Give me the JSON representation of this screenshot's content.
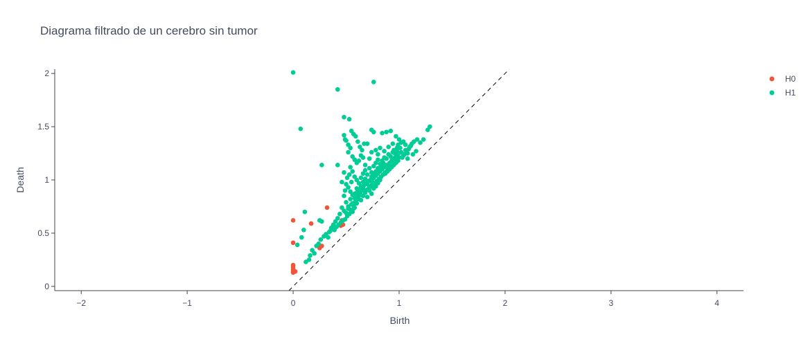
{
  "chart_data": {
    "type": "scatter",
    "title": "Diagrama filtrado de un cerebro sin tumor",
    "xlabel": "Birth",
    "ylabel": "Death",
    "xlim": [
      -2.25,
      4.25
    ],
    "ylim": [
      -0.04,
      2.04
    ],
    "x_ticks": [
      -2,
      -1,
      0,
      1,
      2,
      3,
      4
    ],
    "x_tick_labels": [
      "−2",
      "−1",
      "0",
      "1",
      "2",
      "3",
      "4"
    ],
    "y_ticks": [
      0,
      0.5,
      1,
      1.5,
      2
    ],
    "y_tick_labels": [
      "0",
      "0.5",
      "1",
      "1.5",
      "2"
    ],
    "grid": false,
    "legend_position": "top-right",
    "diagonal": {
      "style": "dashed",
      "color": "#000000",
      "from": [
        -0.04,
        -0.04
      ],
      "to": [
        2.04,
        2.04
      ]
    },
    "series": [
      {
        "name": "H0",
        "color": "#EF553B",
        "points": [
          [
            0,
            0.62
          ],
          [
            0,
            0.41
          ],
          [
            0,
            0.2
          ],
          [
            0,
            0.18
          ],
          [
            0,
            0.16
          ],
          [
            0,
            0.14
          ],
          [
            0,
            0.13
          ],
          [
            0.02,
            0.14
          ],
          [
            0.17,
            0.59
          ],
          [
            0.32,
            0.74
          ],
          [
            0.24,
            0.39
          ],
          [
            0.27,
            0.38
          ],
          [
            0.25,
            0.36
          ],
          [
            0.46,
            0.62
          ],
          [
            0.47,
            0.58
          ],
          [
            0.45,
            0.57
          ]
        ]
      },
      {
        "name": "H1",
        "color": "#00CC96",
        "points": [
          [
            0.0,
            2.01
          ],
          [
            0.42,
            1.85
          ],
          [
            0.76,
            1.92
          ],
          [
            0.07,
            1.48
          ],
          [
            0.48,
            1.59
          ],
          [
            0.53,
            1.57
          ],
          [
            0.27,
            1.14
          ],
          [
            0.42,
            1.14
          ],
          [
            0.11,
            0.7
          ],
          [
            0.25,
            0.62
          ],
          [
            0.27,
            0.61
          ],
          [
            0.04,
            0.39
          ],
          [
            0.08,
            0.46
          ],
          [
            0.1,
            0.53
          ],
          [
            0.12,
            0.23
          ],
          [
            0.15,
            0.25
          ],
          [
            0.16,
            0.29
          ],
          [
            0.18,
            0.34
          ],
          [
            0.2,
            0.31
          ],
          [
            0.22,
            0.38
          ],
          [
            0.24,
            0.4
          ],
          [
            0.26,
            0.44
          ],
          [
            0.29,
            0.47
          ],
          [
            0.31,
            0.49
          ],
          [
            0.33,
            0.46
          ],
          [
            0.35,
            0.52
          ],
          [
            0.37,
            0.55
          ],
          [
            0.39,
            0.53
          ],
          [
            0.41,
            0.56
          ],
          [
            0.43,
            0.58
          ],
          [
            0.45,
            0.6
          ],
          [
            0.47,
            0.62
          ],
          [
            0.49,
            0.63
          ],
          [
            0.51,
            0.66
          ],
          [
            0.53,
            0.68
          ],
          [
            0.54,
            0.72
          ],
          [
            0.56,
            0.7
          ],
          [
            0.57,
            0.76
          ],
          [
            0.58,
            0.74
          ],
          [
            0.59,
            0.8
          ],
          [
            0.6,
            0.78
          ],
          [
            0.61,
            0.84
          ],
          [
            0.62,
            0.82
          ],
          [
            0.63,
            0.88
          ],
          [
            0.64,
            0.86
          ],
          [
            0.65,
            0.9
          ],
          [
            0.66,
            0.92
          ],
          [
            0.67,
            0.95
          ],
          [
            0.68,
            0.89
          ],
          [
            0.69,
            0.97
          ],
          [
            0.7,
            0.91
          ],
          [
            0.71,
            0.99
          ],
          [
            0.72,
            0.93
          ],
          [
            0.73,
            1.0
          ],
          [
            0.74,
            0.95
          ],
          [
            0.75,
            0.98
          ],
          [
            0.76,
            1.02
          ],
          [
            0.77,
            0.96
          ],
          [
            0.78,
            1.04
          ],
          [
            0.79,
            0.99
          ],
          [
            0.8,
            1.06
          ],
          [
            0.81,
            1.01
          ],
          [
            0.82,
            1.08
          ],
          [
            0.83,
            1.03
          ],
          [
            0.84,
            1.1
          ],
          [
            0.85,
            1.05
          ],
          [
            0.86,
            1.12
          ],
          [
            0.87,
            1.07
          ],
          [
            0.88,
            1.14
          ],
          [
            0.89,
            1.09
          ],
          [
            0.9,
            1.11
          ],
          [
            0.91,
            1.16
          ],
          [
            0.92,
            1.13
          ],
          [
            0.93,
            1.18
          ],
          [
            0.94,
            1.15
          ],
          [
            0.95,
            1.2
          ],
          [
            0.96,
            1.17
          ],
          [
            0.97,
            1.22
          ],
          [
            0.98,
            1.19
          ],
          [
            0.99,
            1.24
          ],
          [
            1.0,
            1.21
          ],
          [
            1.02,
            1.26
          ],
          [
            1.04,
            1.23
          ],
          [
            1.06,
            1.28
          ],
          [
            1.08,
            1.25
          ],
          [
            1.1,
            1.31
          ],
          [
            1.12,
            1.34
          ],
          [
            1.14,
            1.36
          ],
          [
            1.17,
            1.38
          ],
          [
            1.2,
            1.35
          ],
          [
            1.23,
            1.38
          ],
          [
            1.27,
            1.47
          ],
          [
            1.29,
            1.5
          ],
          [
            0.48,
            1.42
          ],
          [
            0.49,
            1.38
          ],
          [
            0.5,
            1.37
          ],
          [
            0.52,
            1.33
          ],
          [
            0.54,
            1.3
          ],
          [
            0.55,
            1.46
          ],
          [
            0.57,
            1.43
          ],
          [
            0.59,
            1.41
          ],
          [
            0.61,
            1.36
          ],
          [
            0.63,
            1.31
          ],
          [
            0.65,
            1.28
          ],
          [
            0.67,
            1.34
          ],
          [
            0.7,
            1.34
          ],
          [
            0.74,
            1.47
          ],
          [
            0.76,
            1.45
          ],
          [
            0.84,
            1.44
          ],
          [
            0.88,
            1.45
          ],
          [
            0.92,
            1.46
          ],
          [
            0.97,
            1.41
          ],
          [
            1.0,
            1.38
          ],
          [
            1.04,
            1.36
          ],
          [
            0.52,
            1.26
          ],
          [
            0.56,
            1.22
          ],
          [
            0.58,
            1.19
          ],
          [
            0.6,
            1.16
          ],
          [
            0.62,
            1.18
          ],
          [
            0.64,
            1.23
          ],
          [
            0.66,
            1.21
          ],
          [
            0.68,
            1.14
          ],
          [
            0.72,
            1.2
          ],
          [
            0.74,
            1.26
          ],
          [
            0.78,
            1.28
          ],
          [
            0.8,
            1.24
          ],
          [
            0.82,
            1.3
          ],
          [
            0.86,
            1.27
          ],
          [
            0.9,
            1.31
          ],
          [
            0.94,
            1.34
          ],
          [
            0.98,
            1.3
          ],
          [
            1.06,
            1.33
          ],
          [
            0.54,
            1.12
          ],
          [
            0.56,
            1.08
          ],
          [
            0.58,
            1.03
          ],
          [
            0.6,
            1.0
          ],
          [
            0.62,
            0.97
          ],
          [
            0.64,
            1.02
          ],
          [
            0.66,
            1.06
          ],
          [
            0.68,
            1.09
          ],
          [
            0.7,
            1.05
          ],
          [
            0.72,
            1.11
          ],
          [
            0.74,
            1.07
          ],
          [
            0.76,
            1.13
          ],
          [
            0.78,
            1.16
          ],
          [
            0.8,
            1.19
          ],
          [
            0.82,
            1.15
          ],
          [
            0.84,
            1.18
          ],
          [
            0.86,
            1.21
          ],
          [
            0.88,
            1.2
          ],
          [
            0.9,
            1.24
          ],
          [
            0.92,
            1.22
          ],
          [
            0.94,
            1.26
          ],
          [
            0.96,
            1.25
          ],
          [
            0.98,
            1.27
          ],
          [
            1.01,
            1.3
          ],
          [
            0.5,
            0.96
          ],
          [
            0.52,
            0.93
          ],
          [
            0.54,
            0.89
          ],
          [
            0.56,
            0.86
          ],
          [
            0.58,
            0.83
          ],
          [
            0.6,
            0.88
          ],
          [
            0.62,
            0.91
          ],
          [
            0.64,
            0.94
          ],
          [
            0.66,
            0.98
          ],
          [
            0.68,
            1.01
          ],
          [
            0.7,
            0.96
          ],
          [
            0.72,
            0.99
          ],
          [
            0.74,
            1.03
          ],
          [
            0.76,
            1.05
          ],
          [
            0.78,
            1.08
          ],
          [
            0.8,
            1.11
          ],
          [
            0.83,
            1.13
          ],
          [
            0.85,
            1.16
          ],
          [
            0.48,
            0.85
          ],
          [
            0.5,
            0.79
          ],
          [
            0.52,
            0.75
          ],
          [
            0.54,
            0.82
          ],
          [
            0.56,
            0.78
          ],
          [
            0.58,
            0.87
          ],
          [
            0.6,
            0.92
          ],
          [
            0.62,
            0.86
          ],
          [
            0.64,
            0.81
          ],
          [
            0.66,
            0.85
          ],
          [
            0.68,
            0.88
          ],
          [
            0.7,
            0.84
          ],
          [
            0.72,
            0.9
          ],
          [
            0.74,
            0.87
          ],
          [
            0.76,
            0.92
          ],
          [
            0.78,
            0.94
          ],
          [
            0.8,
            0.97
          ],
          [
            0.82,
            1.0
          ],
          [
            0.46,
            0.74
          ],
          [
            0.48,
            0.71
          ],
          [
            0.5,
            0.69
          ],
          [
            0.52,
            0.73
          ],
          [
            0.55,
            0.77
          ],
          [
            0.57,
            0.73
          ],
          [
            0.44,
            0.68
          ],
          [
            0.42,
            0.64
          ],
          [
            0.4,
            0.61
          ],
          [
            0.38,
            0.58
          ],
          [
            0.36,
            0.55
          ],
          [
            0.34,
            0.51
          ],
          [
            0.87,
            1.06
          ],
          [
            0.89,
            1.08
          ],
          [
            0.91,
            1.1
          ],
          [
            0.93,
            1.12
          ],
          [
            0.95,
            1.14
          ],
          [
            0.97,
            1.16
          ],
          [
            0.99,
            1.18
          ],
          [
            1.03,
            1.21
          ],
          [
            1.05,
            1.24
          ],
          [
            1.07,
            1.27
          ],
          [
            1.09,
            1.29
          ],
          [
            1.11,
            1.32
          ],
          [
            0.95,
            1.28
          ],
          [
            0.99,
            1.33
          ],
          [
            1.02,
            1.35
          ],
          [
            1.13,
            1.24
          ],
          [
            1.16,
            1.27
          ],
          [
            1.08,
            1.2
          ],
          [
            0.48,
            1.07
          ],
          [
            0.46,
            0.98
          ],
          [
            0.49,
            0.9
          ],
          [
            0.51,
            1.02
          ],
          [
            0.53,
            1.05
          ],
          [
            0.55,
            0.98
          ]
        ]
      }
    ]
  }
}
